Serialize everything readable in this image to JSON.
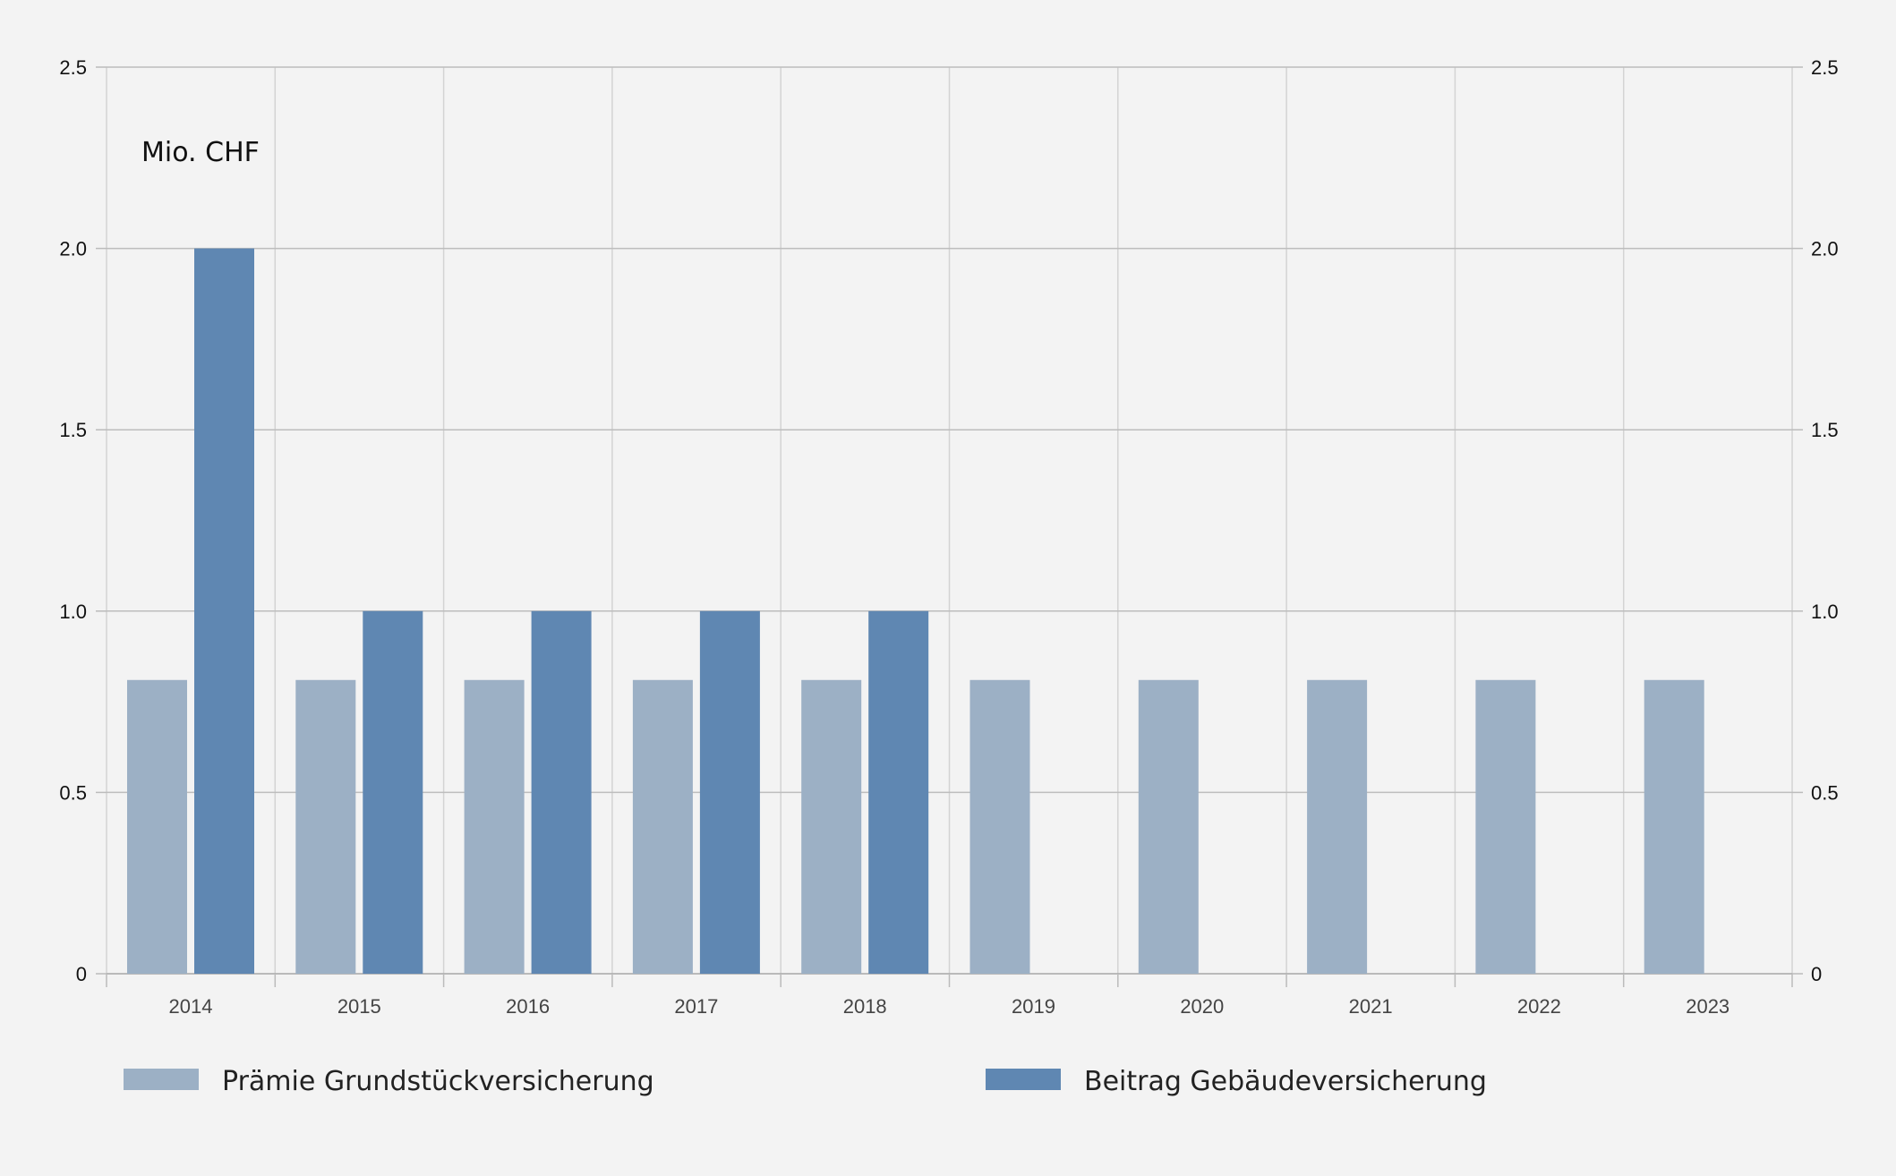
{
  "chart_data": {
    "type": "bar",
    "unit_label": "Mio. CHF",
    "categories": [
      "2014",
      "2015",
      "2016",
      "2017",
      "2018",
      "2019",
      "2020",
      "2021",
      "2022",
      "2023"
    ],
    "series": [
      {
        "name": "Prämie Grundstückversicherung",
        "color": "#9cb0c5",
        "values": [
          0.81,
          0.81,
          0.81,
          0.81,
          0.81,
          0.81,
          0.81,
          0.81,
          0.81,
          0.81
        ]
      },
      {
        "name": "Beitrag Gebäudeversicherung",
        "color": "#5f87b2",
        "values": [
          2.0,
          1.0,
          1.0,
          1.0,
          1.0,
          0,
          0,
          0,
          0,
          0
        ]
      }
    ],
    "ylim": [
      0,
      2.5
    ],
    "yticks": [
      "0",
      "0.5",
      "1.0",
      "1.5",
      "2.0",
      "2.5"
    ],
    "ytick_values": [
      0,
      0.5,
      1.0,
      1.5,
      2.0,
      2.5
    ],
    "grid": true,
    "legend_position": "bottom"
  }
}
